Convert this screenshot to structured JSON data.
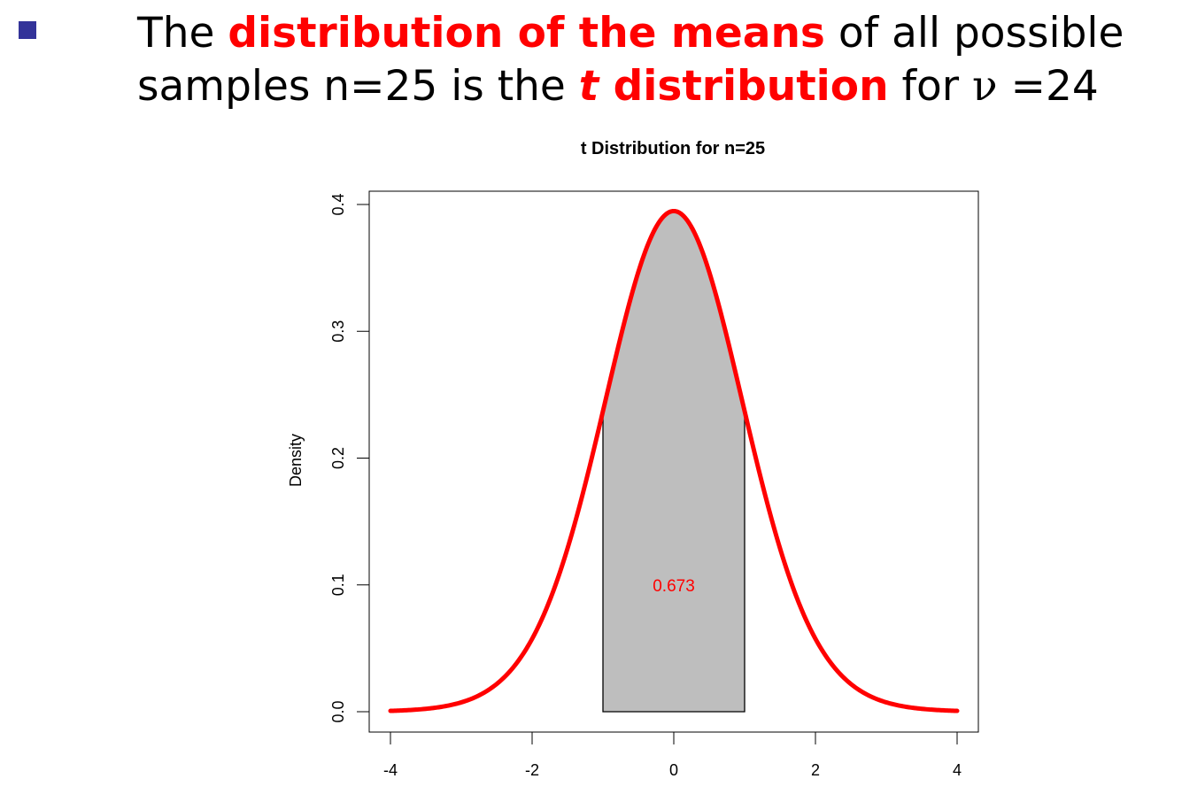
{
  "colors": {
    "accent": "#ff0000",
    "bullet": "#333399",
    "fill": "#bebebe",
    "curve": "#ff0000",
    "text": "#000000"
  },
  "heading": {
    "line1_prefix": "The ",
    "line1_highlight": "distribution of the means",
    "line1_suffix": " of all possible",
    "line2_prefix": "samples n=25 is the ",
    "line2_italic": "t",
    "line2_highlight": " distribution",
    "line2_for": " for ",
    "line2_nu": "ν",
    "line2_suffix": " =24"
  },
  "chart_data": {
    "type": "area",
    "title": "t Distribution for n=25",
    "xlabel": "",
    "ylabel": "Density",
    "df": 24,
    "xlim": [
      -4,
      4
    ],
    "ylim": [
      0,
      0.4
    ],
    "x_ticks": [
      -4,
      -2,
      0,
      2,
      4
    ],
    "y_ticks": [
      0.0,
      0.1,
      0.2,
      0.3,
      0.4
    ],
    "x_tick_labels": [
      "-4",
      "-2",
      "0",
      "2",
      "4"
    ],
    "y_tick_labels": [
      "0.0",
      "0.1",
      "0.2",
      "0.3",
      "0.4"
    ],
    "shaded_region": [
      -1,
      1
    ],
    "annotation": {
      "text": "0.673",
      "x": 0,
      "y": 0.1
    },
    "grid": false,
    "legend": "none"
  }
}
